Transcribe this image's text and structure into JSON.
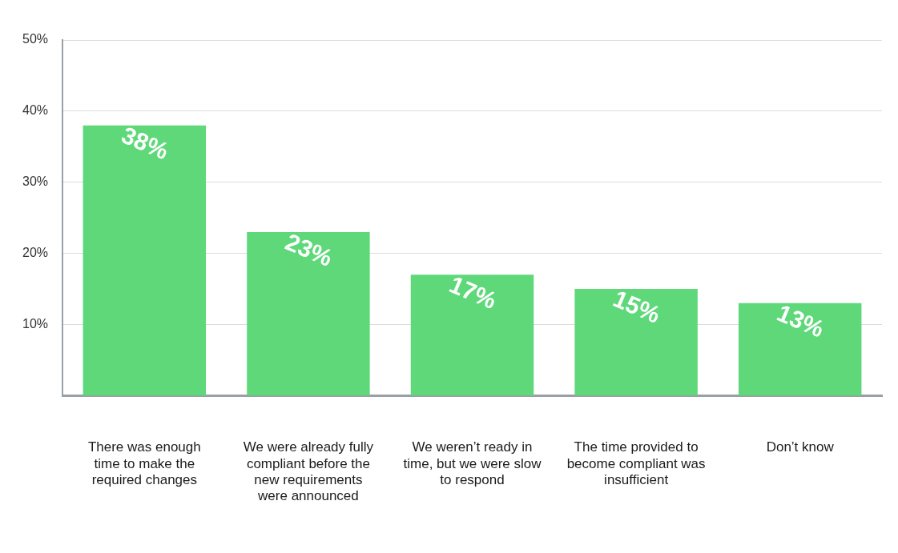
{
  "chart_data": {
    "type": "bar",
    "categories": [
      "There was enough time to make the required changes",
      "We were already fully compliant before the new requirements were announced",
      "We weren’t ready in time, but we were slow to respond",
      "The time provided to become compliant was insufficient",
      "Don’t know"
    ],
    "values": [
      38,
      23,
      17,
      15,
      13
    ],
    "value_labels": [
      "38%",
      "23%",
      "17%",
      "15%",
      "13%"
    ],
    "color": "#5fd87a",
    "ylim": [
      0,
      50
    ],
    "yticks": [
      {
        "value": 10,
        "label": "10%"
      },
      {
        "value": 20,
        "label": "20%"
      },
      {
        "value": 30,
        "label": "30%"
      },
      {
        "value": 40,
        "label": "40%"
      },
      {
        "value": 50,
        "label": "50%"
      }
    ],
    "grid": "y"
  }
}
